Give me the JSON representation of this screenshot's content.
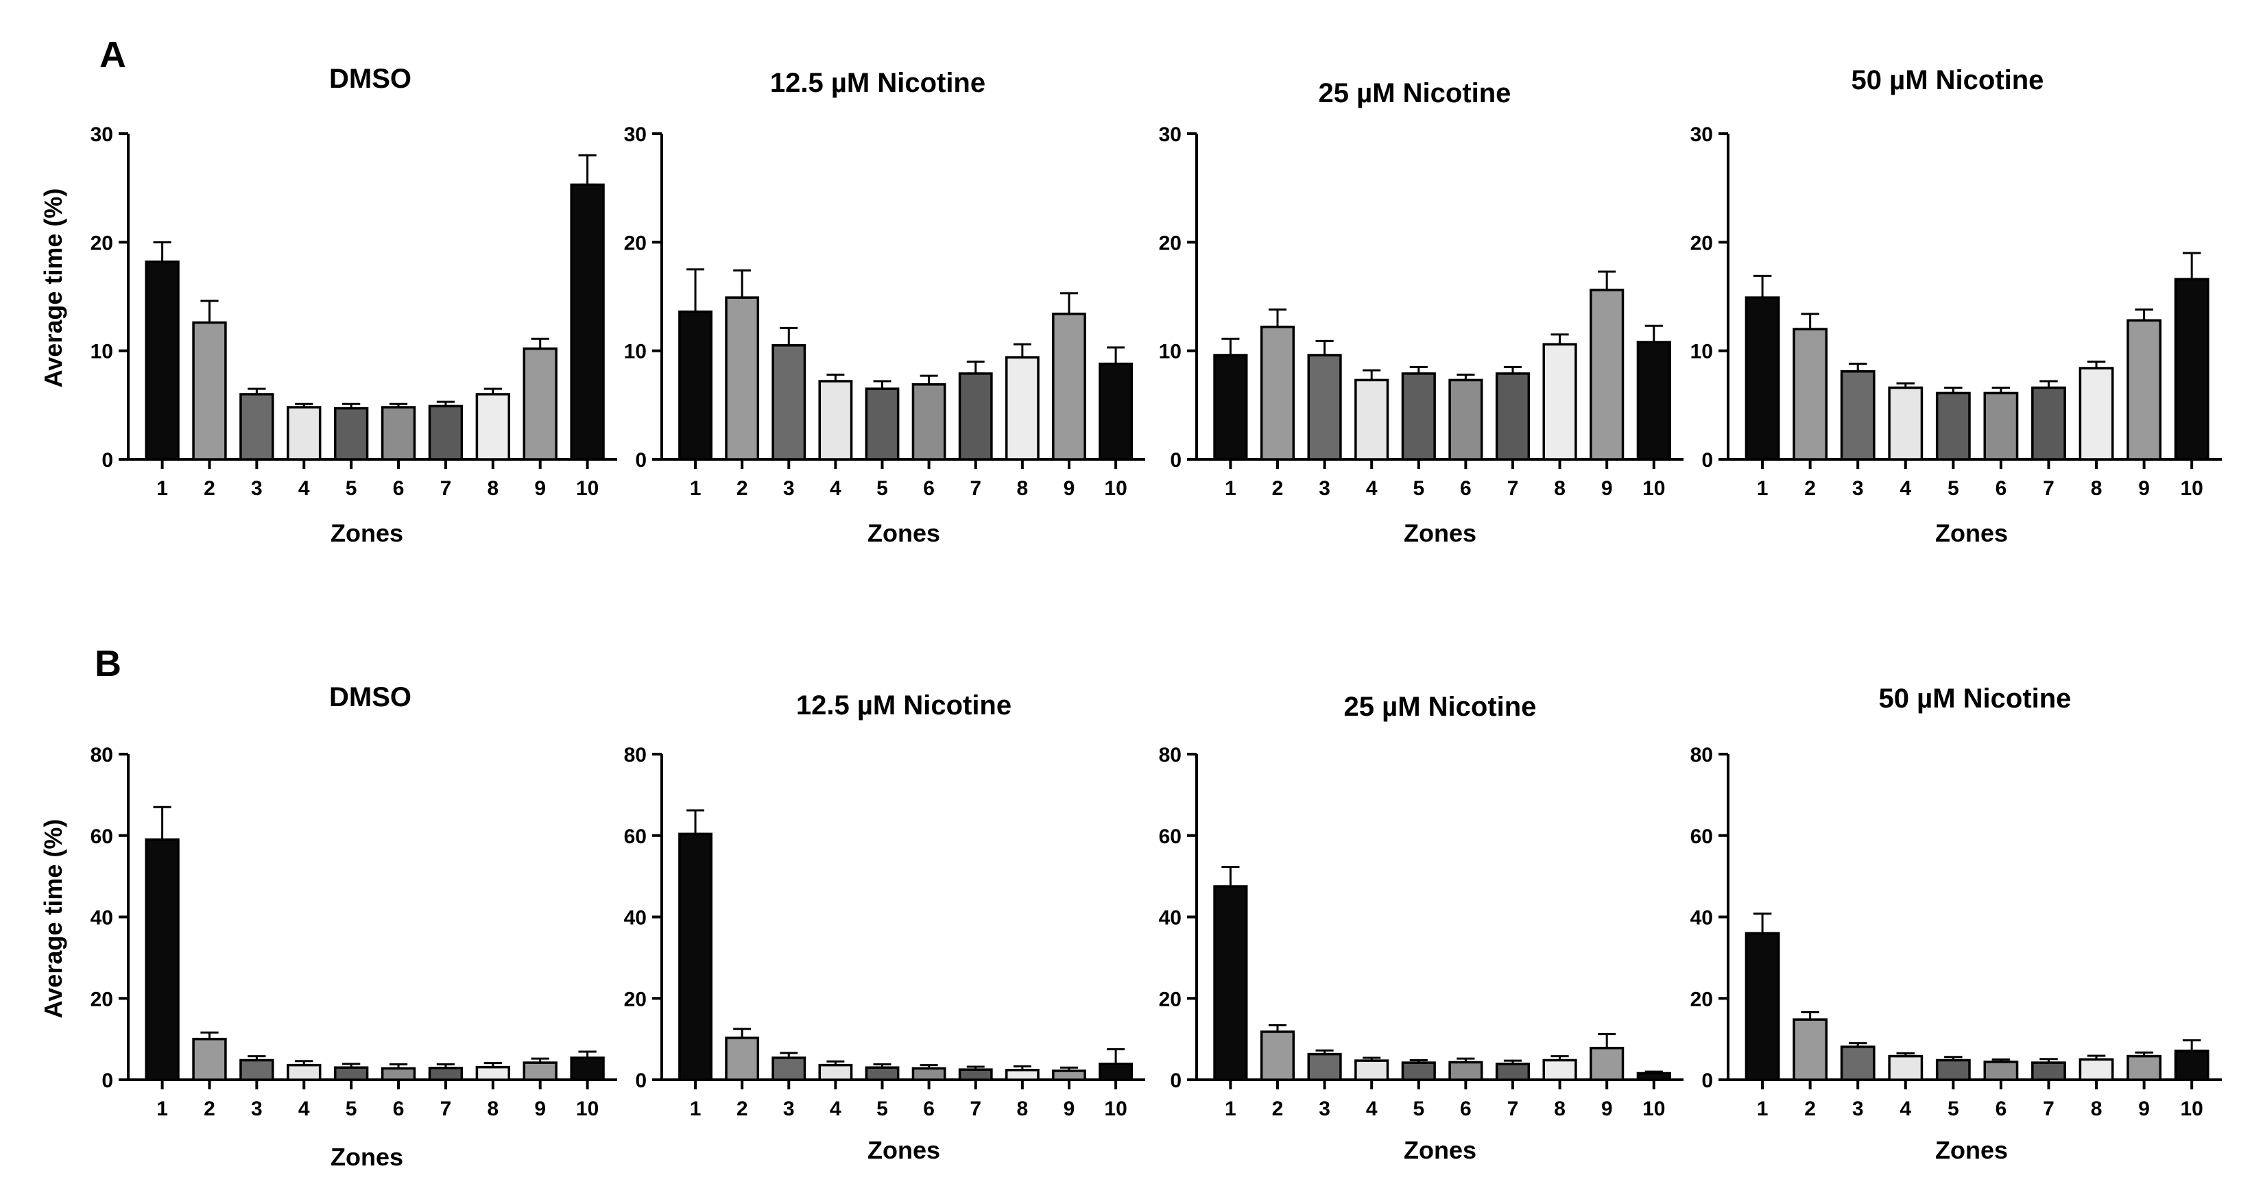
{
  "panels": [
    {
      "letter": "A",
      "charts": [
        {
          "title": "DMSO",
          "ylabel": "Average time (%)",
          "xlabel": "Zones",
          "ylim": [
            0,
            30
          ],
          "yticks": [
            "0",
            "10",
            "20",
            "30"
          ]
        },
        {
          "title": "12.5 µM Nicotine",
          "ylabel": "",
          "xlabel": "Zones",
          "ylim": [
            0,
            30
          ],
          "yticks": [
            "0",
            "10",
            "20",
            "30"
          ]
        },
        {
          "title": "25 µM Nicotine",
          "ylabel": "",
          "xlabel": "Zones",
          "ylim": [
            0,
            30
          ],
          "yticks": [
            "0",
            "10",
            "20",
            "30"
          ]
        },
        {
          "title": "50 µM Nicotine",
          "ylabel": "",
          "xlabel": "Zones",
          "ylim": [
            0,
            30
          ],
          "yticks": [
            "0",
            "10",
            "20",
            "30"
          ]
        }
      ]
    },
    {
      "letter": "B",
      "charts": [
        {
          "title": "DMSO",
          "ylabel": "Average time (%)",
          "xlabel": "Zones",
          "ylim": [
            0,
            80
          ],
          "yticks": [
            "0",
            "20",
            "40",
            "60",
            "80"
          ]
        },
        {
          "title": "12.5 µM Nicotine",
          "ylabel": "",
          "xlabel": "Zones",
          "ylim": [
            0,
            80
          ],
          "yticks": [
            "0",
            "20",
            "40",
            "60",
            "80"
          ]
        },
        {
          "title": "25 µM Nicotine",
          "ylabel": "",
          "xlabel": "Zones",
          "ylim": [
            0,
            80
          ],
          "yticks": [
            "0",
            "20",
            "40",
            "60",
            "80"
          ]
        },
        {
          "title": "50 µM Nicotine",
          "ylabel": "",
          "xlabel": "Zones",
          "ylim": [
            0,
            80
          ],
          "yticks": [
            "0",
            "20",
            "40",
            "60",
            "80"
          ]
        }
      ]
    }
  ],
  "bar_colors": [
    "#0a0a0a",
    "#9a9a9a",
    "#6b6b6b",
    "#e6e6e6",
    "#5e5e5e",
    "#8c8c8c",
    "#5a5a5a",
    "#ececec",
    "#9a9a9a",
    "#0a0a0a"
  ],
  "chart_data": [
    {
      "type": "bar",
      "panel": "A",
      "title": "DMSO",
      "xlabel": "Zones",
      "ylabel": "Average time (%)",
      "ylim": [
        0,
        30
      ],
      "categories": [
        "1",
        "2",
        "3",
        "4",
        "5",
        "6",
        "7",
        "8",
        "9",
        "10"
      ],
      "values": [
        18.2,
        12.6,
        6.0,
        4.8,
        4.7,
        4.8,
        4.9,
        6.0,
        10.2,
        25.3
      ],
      "errors": [
        1.8,
        2.0,
        0.5,
        0.3,
        0.4,
        0.3,
        0.4,
        0.5,
        0.9,
        2.7
      ]
    },
    {
      "type": "bar",
      "panel": "A",
      "title": "12.5 µM Nicotine",
      "xlabel": "Zones",
      "ylabel": "",
      "ylim": [
        0,
        30
      ],
      "categories": [
        "1",
        "2",
        "3",
        "4",
        "5",
        "6",
        "7",
        "8",
        "9",
        "10"
      ],
      "values": [
        13.6,
        14.9,
        10.5,
        7.2,
        6.5,
        6.9,
        7.9,
        9.4,
        13.4,
        8.8
      ],
      "errors": [
        3.9,
        2.5,
        1.6,
        0.6,
        0.7,
        0.8,
        1.1,
        1.2,
        1.9,
        1.5
      ]
    },
    {
      "type": "bar",
      "panel": "A",
      "title": "25 µM Nicotine",
      "xlabel": "Zones",
      "ylabel": "",
      "ylim": [
        0,
        30
      ],
      "categories": [
        "1",
        "2",
        "3",
        "4",
        "5",
        "6",
        "7",
        "8",
        "9",
        "10"
      ],
      "values": [
        9.6,
        12.2,
        9.6,
        7.3,
        7.9,
        7.3,
        7.9,
        10.6,
        15.6,
        10.8
      ],
      "errors": [
        1.5,
        1.6,
        1.3,
        0.9,
        0.6,
        0.5,
        0.6,
        0.9,
        1.7,
        1.5
      ]
    },
    {
      "type": "bar",
      "panel": "A",
      "title": "50 µM Nicotine",
      "xlabel": "Zones",
      "ylabel": "",
      "ylim": [
        0,
        30
      ],
      "categories": [
        "1",
        "2",
        "3",
        "4",
        "5",
        "6",
        "7",
        "8",
        "9",
        "10"
      ],
      "values": [
        14.9,
        12.0,
        8.1,
        6.6,
        6.1,
        6.1,
        6.6,
        8.4,
        12.8,
        16.6
      ],
      "errors": [
        2.0,
        1.4,
        0.7,
        0.4,
        0.5,
        0.5,
        0.6,
        0.6,
        1.0,
        2.4
      ]
    },
    {
      "type": "bar",
      "panel": "B",
      "title": "DMSO",
      "xlabel": "Zones",
      "ylabel": "Average time (%)",
      "ylim": [
        0,
        80
      ],
      "categories": [
        "1",
        "2",
        "3",
        "4",
        "5",
        "6",
        "7",
        "8",
        "9",
        "10"
      ],
      "values": [
        59.0,
        10.0,
        4.8,
        3.6,
        3.0,
        2.8,
        2.9,
        3.1,
        4.2,
        5.4
      ],
      "errors": [
        8.0,
        1.6,
        1.0,
        1.0,
        0.9,
        1.0,
        0.9,
        1.0,
        1.0,
        1.5
      ]
    },
    {
      "type": "bar",
      "panel": "B",
      "title": "12.5 µM Nicotine",
      "xlabel": "Zones",
      "ylabel": "",
      "ylim": [
        0,
        80
      ],
      "categories": [
        "1",
        "2",
        "3",
        "4",
        "5",
        "6",
        "7",
        "8",
        "9",
        "10"
      ],
      "values": [
        60.4,
        10.3,
        5.4,
        3.6,
        3.0,
        2.8,
        2.5,
        2.4,
        2.2,
        3.9
      ],
      "errors": [
        5.8,
        2.2,
        1.2,
        0.9,
        0.8,
        0.8,
        0.7,
        0.9,
        0.8,
        3.6
      ]
    },
    {
      "type": "bar",
      "panel": "B",
      "title": "25 µM Nicotine",
      "xlabel": "Zones",
      "ylabel": "",
      "ylim": [
        0,
        80
      ],
      "categories": [
        "1",
        "2",
        "3",
        "4",
        "5",
        "6",
        "7",
        "8",
        "9",
        "10"
      ],
      "values": [
        47.5,
        11.8,
        6.3,
        4.7,
        4.2,
        4.3,
        3.9,
        4.8,
        7.8,
        1.6
      ],
      "errors": [
        4.8,
        1.6,
        0.9,
        0.7,
        0.6,
        0.9,
        0.8,
        1.0,
        3.4,
        0.4
      ]
    },
    {
      "type": "bar",
      "panel": "B",
      "title": "50 µM Nicotine",
      "xlabel": "Zones",
      "ylabel": "",
      "ylim": [
        0,
        80
      ],
      "categories": [
        "1",
        "2",
        "3",
        "4",
        "5",
        "6",
        "7",
        "8",
        "9",
        "10"
      ],
      "values": [
        36.0,
        14.8,
        8.1,
        5.8,
        4.8,
        4.4,
        4.2,
        5.0,
        5.8,
        7.1
      ],
      "errors": [
        4.8,
        1.8,
        0.9,
        0.7,
        0.8,
        0.6,
        0.9,
        0.9,
        0.9,
        2.6
      ]
    }
  ]
}
